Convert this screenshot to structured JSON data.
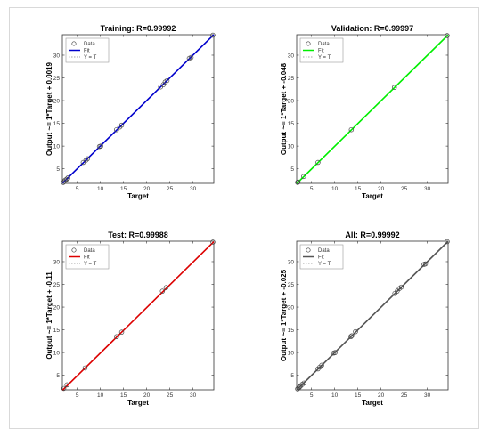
{
  "chart_data": [
    {
      "type": "scatter",
      "title": "Training: R=0.99992",
      "xlabel": "Target",
      "ylabel": "Output ~= 1*Target + 0.0019",
      "xlim": [
        1.8,
        34.5
      ],
      "ylim": [
        1.8,
        34.5
      ],
      "xticks": [
        5,
        10,
        15,
        20,
        25,
        30
      ],
      "yticks": [
        5,
        10,
        15,
        20,
        25,
        30
      ],
      "fit_color": "#0000cc",
      "fit": {
        "slope": 1,
        "intercept": 0.0019
      },
      "legend": {
        "position": "top-left",
        "entries": [
          "Data",
          "Fit",
          "Y = T"
        ]
      },
      "grid": false,
      "points": [
        [
          2.0,
          2.0
        ],
        [
          2.2,
          2.2
        ],
        [
          2.4,
          2.5
        ],
        [
          2.7,
          2.7
        ],
        [
          3.0,
          3.0
        ],
        [
          6.3,
          6.4
        ],
        [
          6.9,
          6.9
        ],
        [
          7.2,
          7.2
        ],
        [
          9.8,
          9.9
        ],
        [
          10.1,
          10.0
        ],
        [
          13.5,
          13.6
        ],
        [
          14.2,
          14.2
        ],
        [
          14.6,
          14.6
        ],
        [
          23.0,
          23.0
        ],
        [
          23.6,
          23.5
        ],
        [
          24.0,
          24.1
        ],
        [
          24.4,
          24.4
        ],
        [
          29.2,
          29.3
        ],
        [
          29.6,
          29.5
        ],
        [
          34.3,
          34.4
        ]
      ]
    },
    {
      "type": "scatter",
      "title": "Validation: R=0.99997",
      "xlabel": "Target",
      "ylabel": "Output ~= 1*Target + -0.048",
      "xlim": [
        1.8,
        34.5
      ],
      "ylim": [
        1.8,
        34.5
      ],
      "xticks": [
        5,
        10,
        15,
        20,
        25,
        30
      ],
      "yticks": [
        5,
        10,
        15,
        20,
        25,
        30
      ],
      "fit_color": "#00ee00",
      "fit": {
        "slope": 1,
        "intercept": -0.048
      },
      "legend": {
        "position": "top-left",
        "entries": [
          "Data",
          "Fit",
          "Y = T"
        ]
      },
      "grid": false,
      "points": [
        [
          2.0,
          2.0
        ],
        [
          2.1,
          2.1
        ],
        [
          3.3,
          3.3
        ],
        [
          6.4,
          6.4
        ],
        [
          13.6,
          13.6
        ],
        [
          22.9,
          22.9
        ],
        [
          34.3,
          34.3
        ]
      ]
    },
    {
      "type": "scatter",
      "title": "Test: R=0.99988",
      "xlabel": "Target",
      "ylabel": "Output ~= 1*Target + -0.11",
      "xlim": [
        1.8,
        34.5
      ],
      "ylim": [
        1.8,
        34.5
      ],
      "xticks": [
        5,
        10,
        15,
        20,
        25,
        30
      ],
      "yticks": [
        5,
        10,
        15,
        20,
        25,
        30
      ],
      "fit_color": "#dd0000",
      "fit": {
        "slope": 1,
        "intercept": -0.11
      },
      "legend": {
        "position": "top-left",
        "entries": [
          "Data",
          "Fit",
          "Y = T"
        ]
      },
      "grid": false,
      "points": [
        [
          2.1,
          2.1
        ],
        [
          2.8,
          2.9
        ],
        [
          6.7,
          6.6
        ],
        [
          13.5,
          13.5
        ],
        [
          14.6,
          14.5
        ],
        [
          23.4,
          23.5
        ],
        [
          24.2,
          24.3
        ],
        [
          34.3,
          34.3
        ]
      ]
    },
    {
      "type": "scatter",
      "title": "All: R=0.99992",
      "xlabel": "Target",
      "ylabel": "Output ~= 1*Target + -0.025",
      "xlim": [
        1.8,
        34.5
      ],
      "ylim": [
        1.8,
        34.5
      ],
      "xticks": [
        5,
        10,
        15,
        20,
        25,
        30
      ],
      "yticks": [
        5,
        10,
        15,
        20,
        25,
        30
      ],
      "fit_color": "#555555",
      "fit": {
        "slope": 1,
        "intercept": -0.025
      },
      "legend": {
        "position": "top-left",
        "entries": [
          "Data",
          "Fit",
          "Y = T"
        ]
      },
      "grid": false,
      "points": [
        [
          2.0,
          2.0
        ],
        [
          2.2,
          2.2
        ],
        [
          2.4,
          2.4
        ],
        [
          2.6,
          2.6
        ],
        [
          3.0,
          3.0
        ],
        [
          3.4,
          3.3
        ],
        [
          6.4,
          6.4
        ],
        [
          6.8,
          6.8
        ],
        [
          7.2,
          7.2
        ],
        [
          9.8,
          9.9
        ],
        [
          10.1,
          10.0
        ],
        [
          13.5,
          13.5
        ],
        [
          13.7,
          13.7
        ],
        [
          14.5,
          14.6
        ],
        [
          23.0,
          23.0
        ],
        [
          23.5,
          23.5
        ],
        [
          24.0,
          24.1
        ],
        [
          24.4,
          24.4
        ],
        [
          29.3,
          29.4
        ],
        [
          29.6,
          29.5
        ],
        [
          34.3,
          34.4
        ]
      ]
    }
  ]
}
